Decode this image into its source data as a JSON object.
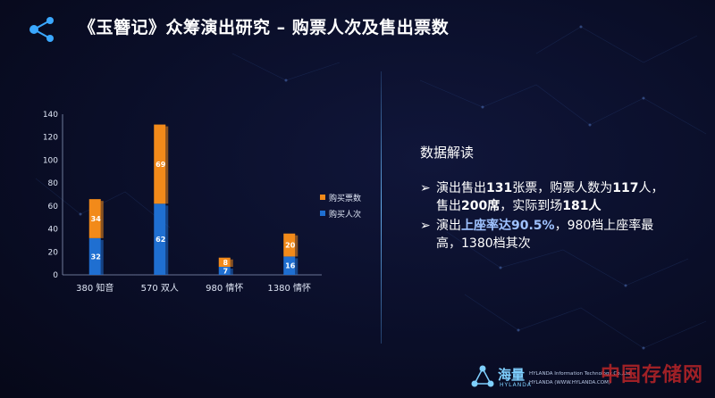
{
  "header": {
    "title": "《玉簪记》众筹演出研究 – 购票人次及售出票数"
  },
  "chart_data": {
    "type": "bar",
    "categories": [
      "380 知音",
      "570 双人",
      "980 情怀",
      "1380 情怀"
    ],
    "series": [
      {
        "name": "购买人次",
        "values": [
          32,
          62,
          7,
          16
        ],
        "color": "#1f6fd1"
      },
      {
        "name": "购买票数",
        "values": [
          34,
          69,
          8,
          20
        ],
        "color": "#f28a1a"
      }
    ],
    "ylim": [
      0,
      140
    ],
    "yticks": [
      0,
      20,
      40,
      60,
      80,
      100,
      120,
      140
    ],
    "stacked": true,
    "data_labels": true,
    "grid": false,
    "legend_position": "right",
    "legend_order": [
      "购买票数",
      "购买人次"
    ]
  },
  "analysis": {
    "title": "数据解读",
    "marker": "➢",
    "bullet1": {
      "t1": "演出售出",
      "b1": "131",
      "t2": "张票，购票人数为",
      "b2": "117",
      "t3": "人，售出",
      "b3": "200席",
      "t4": "，实际到场",
      "b4": "181人"
    },
    "bullet2": {
      "t1": "演出",
      "b1": "上座率达90.5%",
      "t2": "，980档上座率最高，1380档其次"
    }
  },
  "footer": {
    "brand_cn": "海量",
    "brand_en": "HYLANDA",
    "company": "HYLANDA Information Technology Co.,Ltd",
    "url": "HYLANDA (WWW.HYLANDA.COM)",
    "watermark": "中国存储网"
  }
}
